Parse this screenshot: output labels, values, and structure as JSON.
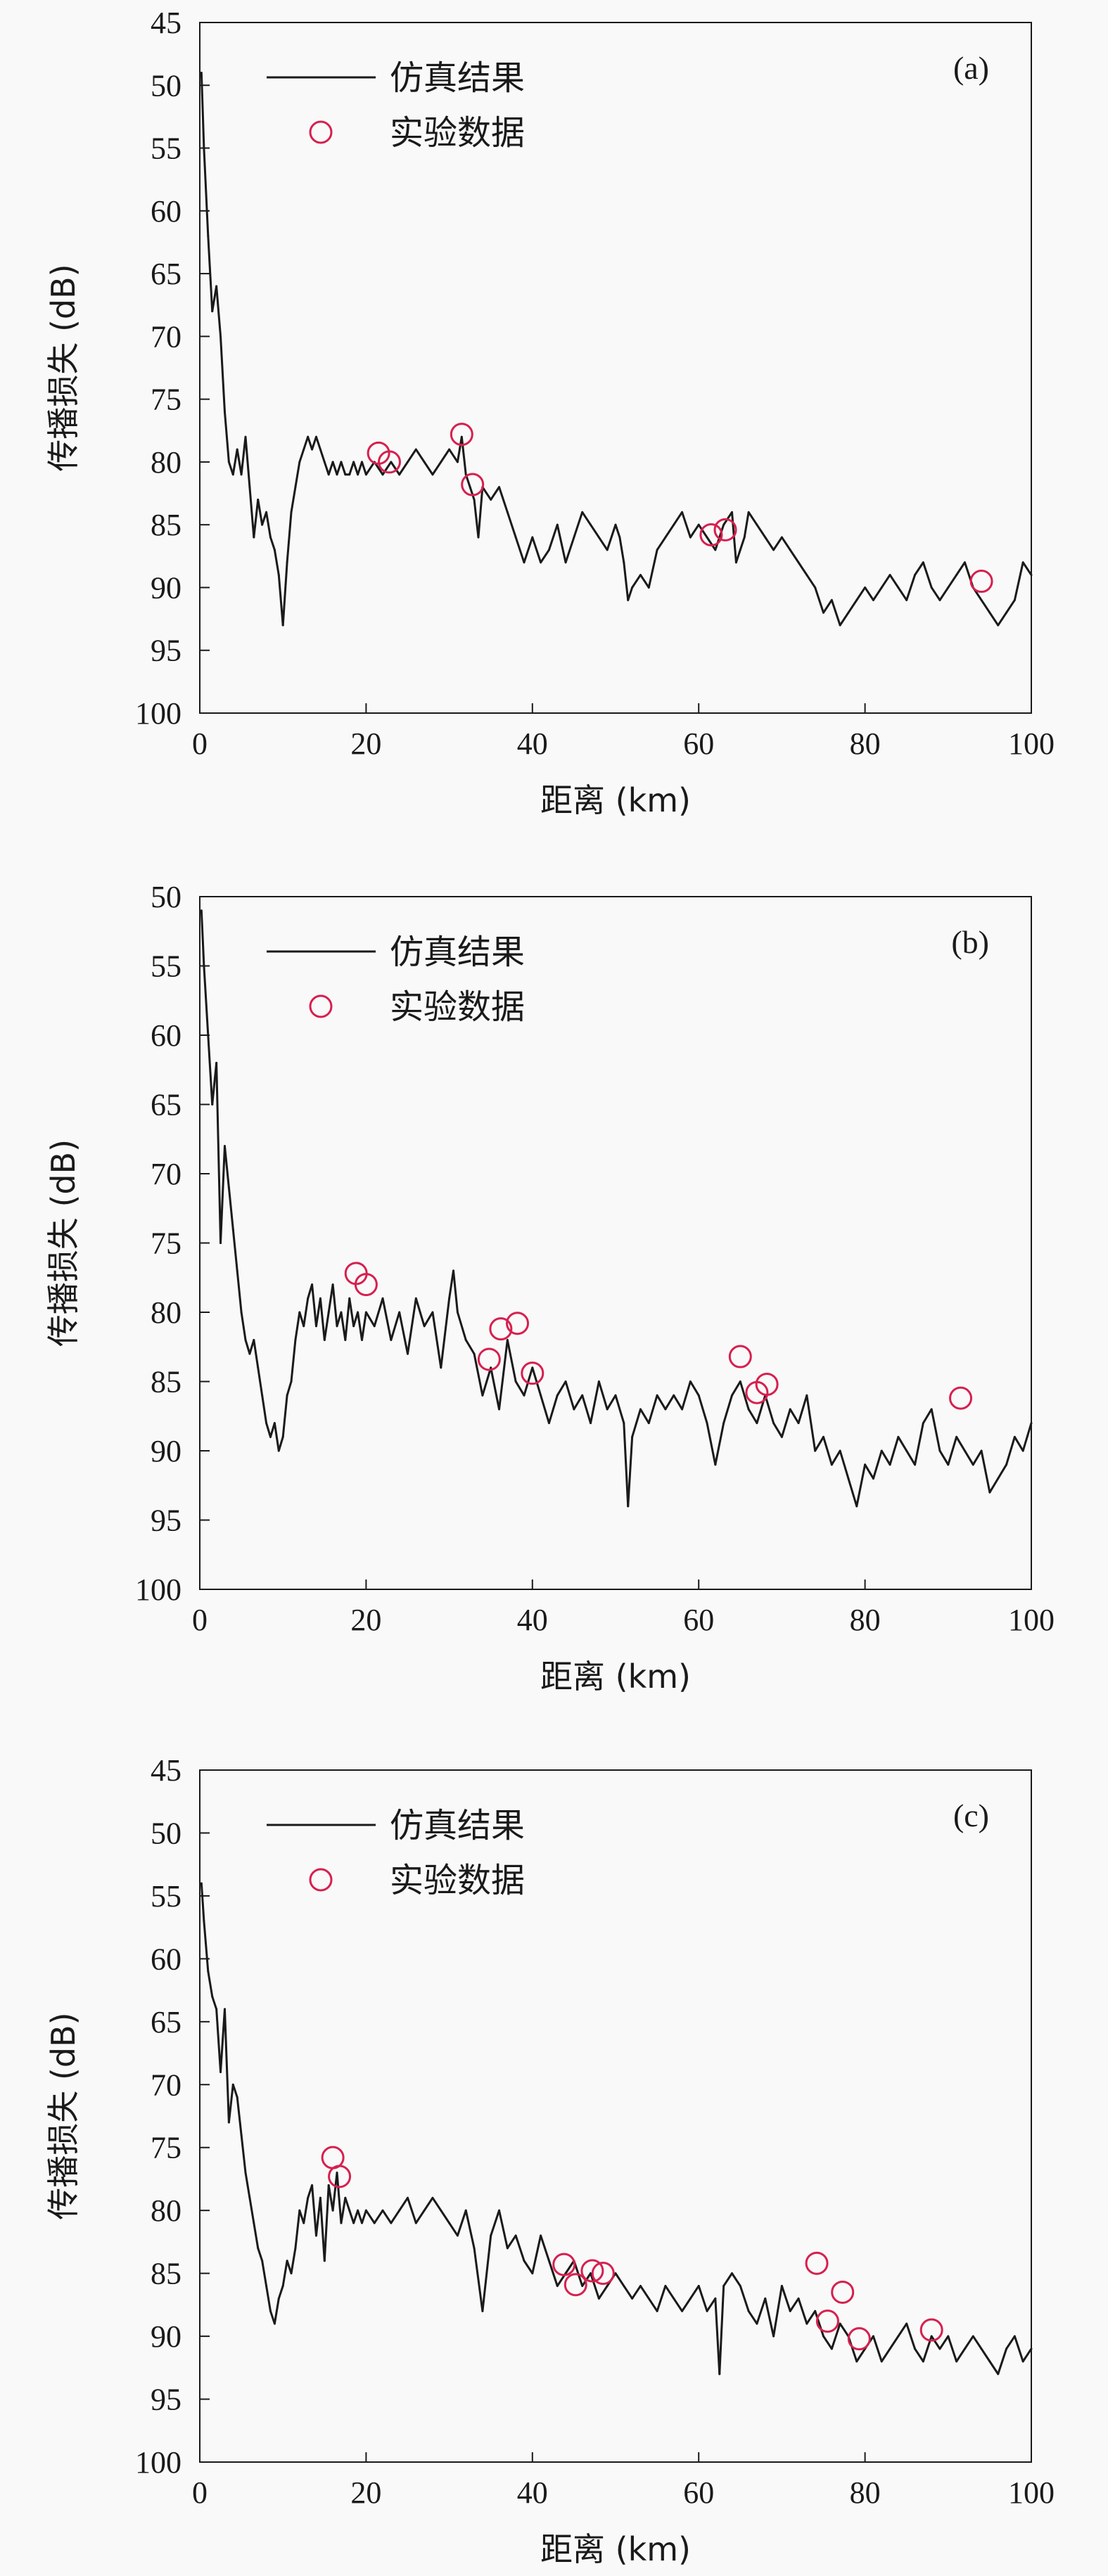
{
  "colors": {
    "line": "#1a1a1a",
    "marker": "#d6204e",
    "frame": "#1a1a1a",
    "background": "#f9f9f9"
  },
  "chart_data": [
    {
      "type": "line",
      "panel_label": "(a)",
      "xlabel": "距离 (km)",
      "ylabel": "传播损失 (dB)",
      "xlim": [
        0,
        100
      ],
      "ylim": [
        100,
        45
      ],
      "y_inverted": true,
      "xticks": [
        "0",
        "20",
        "40",
        "60",
        "80",
        "100"
      ],
      "yticks": [
        "45",
        "50",
        "55",
        "60",
        "65",
        "70",
        "75",
        "80",
        "85",
        "90",
        "95",
        "100"
      ],
      "legend": {
        "position": "top-left",
        "line_label": "仿真结果",
        "marker_label": "实验数据"
      },
      "series": [
        {
          "name": "仿真结果",
          "kind": "line",
          "x": [
            0.2,
            0.5,
            1.0,
            1.5,
            2.0,
            2.5,
            3.0,
            3.5,
            4.0,
            4.5,
            5.0,
            5.5,
            6.0,
            6.5,
            7.0,
            7.5,
            8.0,
            8.5,
            9.0,
            9.5,
            10.0,
            10.5,
            11.0,
            11.5,
            12.0,
            12.5,
            13.0,
            13.5,
            14.0,
            14.5,
            15.0,
            15.5,
            16.0,
            16.5,
            17.0,
            17.5,
            18.0,
            18.5,
            19.0,
            19.5,
            20.0,
            21.0,
            22.0,
            23.0,
            24.0,
            25.0,
            26.0,
            27.0,
            28.0,
            29.0,
            30.0,
            31.0,
            31.5,
            32.0,
            32.5,
            33.0,
            33.5,
            34.0,
            35.0,
            36.0,
            37.0,
            38.0,
            39.0,
            40.0,
            41.0,
            42.0,
            43.0,
            44.0,
            45.0,
            46.0,
            47.0,
            48.0,
            49.0,
            50.0,
            50.5,
            51.0,
            51.5,
            52.0,
            53.0,
            54.0,
            55.0,
            56.0,
            57.0,
            58.0,
            59.0,
            60.0,
            61.0,
            62.0,
            63.0,
            64.0,
            64.5,
            65.0,
            65.5,
            66.0,
            67.0,
            68.0,
            69.0,
            70.0,
            71.0,
            72.0,
            73.0,
            74.0,
            75.0,
            76.0,
            77.0,
            78.0,
            79.0,
            80.0,
            81.0,
            82.0,
            83.0,
            84.0,
            85.0,
            86.0,
            87.0,
            88.0,
            89.0,
            90.0,
            91.0,
            92.0,
            93.0,
            94.0,
            95.0,
            96.0,
            97.0,
            98.0,
            99.0,
            100.0
          ],
          "y": [
            49,
            55,
            62,
            68,
            66,
            70,
            76,
            80,
            81,
            79,
            81,
            78,
            82,
            86,
            83,
            85,
            84,
            86,
            87,
            89,
            93,
            88,
            84,
            82,
            80,
            79,
            78,
            79,
            78,
            79,
            80,
            81,
            80,
            81,
            80,
            81,
            81,
            80,
            81,
            80,
            81,
            80,
            81,
            80,
            81,
            80,
            79,
            80,
            81,
            80,
            79,
            80,
            78,
            81,
            82,
            83,
            86,
            82,
            83,
            82,
            84,
            86,
            88,
            86,
            88,
            87,
            85,
            88,
            86,
            84,
            85,
            86,
            87,
            85,
            86,
            88,
            91,
            90,
            89,
            90,
            87,
            86,
            85,
            84,
            86,
            85,
            86,
            87,
            85,
            84,
            88,
            87,
            86,
            84,
            85,
            86,
            87,
            86,
            87,
            88,
            89,
            90,
            92,
            91,
            93,
            92,
            91,
            90,
            91,
            90,
            89,
            90,
            91,
            89,
            88,
            90,
            91,
            90,
            89,
            88,
            90,
            91,
            92,
            93,
            92,
            91,
            88,
            89
          ],
          "color": "#1a1a1a"
        },
        {
          "name": "实验数据",
          "kind": "scatter",
          "x": [
            21.5,
            22.8,
            31.5,
            32.8,
            61.5,
            63.2,
            94.0
          ],
          "y": [
            79.3,
            80.0,
            77.8,
            81.8,
            85.8,
            85.4,
            89.5
          ],
          "color": "#d6204e"
        }
      ]
    },
    {
      "type": "line",
      "panel_label": "(b)",
      "xlabel": "距离 (km)",
      "ylabel": "传播损失 (dB)",
      "xlim": [
        0,
        100
      ],
      "ylim": [
        100,
        50
      ],
      "y_inverted": true,
      "xticks": [
        "0",
        "20",
        "40",
        "60",
        "80",
        "100"
      ],
      "yticks": [
        "50",
        "55",
        "60",
        "65",
        "70",
        "75",
        "80",
        "85",
        "90",
        "95",
        "100"
      ],
      "legend": {
        "position": "top-left",
        "line_label": "仿真结果",
        "marker_label": "实验数据"
      },
      "series": [
        {
          "name": "仿真结果",
          "kind": "line",
          "x": [
            0.2,
            0.5,
            1.0,
            1.5,
            2.0,
            2.5,
            3.0,
            3.5,
            4.0,
            4.5,
            5.0,
            5.5,
            6.0,
            6.5,
            7.0,
            7.5,
            8.0,
            8.5,
            9.0,
            9.5,
            10.0,
            10.5,
            11.0,
            11.5,
            12.0,
            12.5,
            13.0,
            13.5,
            14.0,
            14.5,
            15.0,
            15.5,
            16.0,
            16.5,
            17.0,
            17.5,
            18.0,
            18.5,
            19.0,
            19.5,
            20.0,
            21.0,
            22.0,
            23.0,
            24.0,
            25.0,
            26.0,
            27.0,
            28.0,
            29.0,
            30.0,
            30.5,
            31.0,
            32.0,
            33.0,
            34.0,
            35.0,
            36.0,
            37.0,
            38.0,
            39.0,
            40.0,
            41.0,
            42.0,
            43.0,
            44.0,
            45.0,
            46.0,
            47.0,
            48.0,
            49.0,
            50.0,
            51.0,
            51.5,
            52.0,
            53.0,
            54.0,
            55.0,
            56.0,
            57.0,
            58.0,
            59.0,
            60.0,
            61.0,
            62.0,
            63.0,
            64.0,
            65.0,
            66.0,
            67.0,
            68.0,
            69.0,
            70.0,
            71.0,
            72.0,
            73.0,
            74.0,
            75.0,
            76.0,
            77.0,
            78.0,
            79.0,
            80.0,
            81.0,
            82.0,
            83.0,
            84.0,
            85.0,
            86.0,
            87.0,
            88.0,
            89.0,
            90.0,
            91.0,
            92.0,
            93.0,
            94.0,
            95.0,
            96.0,
            97.0,
            98.0,
            99.0,
            100.0
          ],
          "y": [
            51,
            55,
            60,
            65,
            62,
            75,
            68,
            71,
            74,
            77,
            80,
            82,
            83,
            82,
            84,
            86,
            88,
            89,
            88,
            90,
            89,
            86,
            85,
            82,
            80,
            81,
            79,
            78,
            81,
            79,
            82,
            80,
            78,
            81,
            80,
            82,
            79,
            81,
            80,
            82,
            80,
            81,
            79,
            82,
            80,
            83,
            79,
            81,
            80,
            84,
            79,
            77,
            80,
            82,
            83,
            86,
            84,
            87,
            82,
            85,
            86,
            84,
            86,
            88,
            86,
            85,
            87,
            86,
            88,
            85,
            87,
            86,
            88,
            94,
            89,
            87,
            88,
            86,
            87,
            86,
            87,
            85,
            86,
            88,
            91,
            88,
            86,
            85,
            87,
            88,
            86,
            88,
            89,
            87,
            88,
            86,
            90,
            89,
            91,
            90,
            92,
            94,
            91,
            92,
            90,
            91,
            89,
            90,
            91,
            88,
            87,
            90,
            91,
            89,
            90,
            91,
            90,
            93,
            92,
            91,
            89,
            90,
            88
          ],
          "color": "#1a1a1a"
        },
        {
          "name": "实验数据",
          "kind": "scatter",
          "x": [
            18.8,
            20.0,
            34.8,
            36.2,
            38.2,
            40.0,
            65.0,
            67.0,
            68.2,
            91.5
          ],
          "y": [
            77.2,
            78.0,
            83.4,
            81.2,
            80.8,
            84.4,
            83.2,
            85.8,
            85.2,
            86.2
          ],
          "color": "#d6204e"
        }
      ]
    },
    {
      "type": "line",
      "panel_label": "(c)",
      "xlabel": "距离 (km)",
      "ylabel": "传播损失 (dB)",
      "xlim": [
        0,
        100
      ],
      "ylim": [
        100,
        45
      ],
      "y_inverted": true,
      "xticks": [
        "0",
        "20",
        "40",
        "60",
        "80",
        "100"
      ],
      "yticks": [
        "45",
        "50",
        "55",
        "60",
        "65",
        "70",
        "75",
        "80",
        "85",
        "90",
        "95",
        "100"
      ],
      "legend": {
        "position": "top-left",
        "line_label": "仿真结果",
        "marker_label": "实验数据"
      },
      "series": [
        {
          "name": "仿真结果",
          "kind": "line",
          "x": [
            0.2,
            0.5,
            1.0,
            1.5,
            2.0,
            2.5,
            3.0,
            3.5,
            4.0,
            4.5,
            5.0,
            5.5,
            6.0,
            6.5,
            7.0,
            7.5,
            8.0,
            8.5,
            9.0,
            9.5,
            10.0,
            10.5,
            11.0,
            11.5,
            12.0,
            12.5,
            13.0,
            13.5,
            14.0,
            14.5,
            15.0,
            15.5,
            16.0,
            16.5,
            17.0,
            17.5,
            18.0,
            18.5,
            19.0,
            19.5,
            20.0,
            21.0,
            22.0,
            23.0,
            24.0,
            25.0,
            26.0,
            27.0,
            28.0,
            29.0,
            30.0,
            31.0,
            32.0,
            33.0,
            34.0,
            35.0,
            36.0,
            37.0,
            38.0,
            39.0,
            40.0,
            41.0,
            42.0,
            43.0,
            44.0,
            45.0,
            46.0,
            47.0,
            48.0,
            49.0,
            50.0,
            51.0,
            52.0,
            53.0,
            54.0,
            55.0,
            56.0,
            57.0,
            58.0,
            59.0,
            60.0,
            61.0,
            62.0,
            62.5,
            63.0,
            64.0,
            65.0,
            66.0,
            67.0,
            68.0,
            69.0,
            70.0,
            71.0,
            72.0,
            73.0,
            74.0,
            75.0,
            76.0,
            77.0,
            78.0,
            79.0,
            80.0,
            81.0,
            82.0,
            83.0,
            84.0,
            85.0,
            86.0,
            87.0,
            88.0,
            89.0,
            90.0,
            91.0,
            92.0,
            93.0,
            94.0,
            95.0,
            96.0,
            97.0,
            98.0,
            99.0,
            100.0
          ],
          "y": [
            54,
            57,
            61,
            63,
            64,
            69,
            64,
            73,
            70,
            71,
            74,
            77,
            79,
            81,
            83,
            84,
            86,
            88,
            89,
            87,
            86,
            84,
            85,
            83,
            80,
            81,
            79,
            78,
            82,
            79,
            84,
            78,
            80,
            77,
            81,
            79,
            80,
            81,
            80,
            81,
            80,
            81,
            80,
            81,
            80,
            79,
            81,
            80,
            79,
            80,
            81,
            82,
            80,
            83,
            88,
            82,
            80,
            83,
            82,
            84,
            85,
            82,
            84,
            86,
            85,
            84,
            86,
            85,
            87,
            86,
            85,
            86,
            87,
            86,
            87,
            88,
            86,
            87,
            88,
            87,
            86,
            88,
            87,
            93,
            86,
            85,
            86,
            88,
            89,
            87,
            90,
            86,
            88,
            87,
            89,
            88,
            90,
            91,
            89,
            90,
            92,
            91,
            90,
            92,
            91,
            90,
            89,
            91,
            92,
            90,
            91,
            90,
            92,
            91,
            90,
            91,
            92,
            93,
            91,
            90,
            92,
            91
          ],
          "color": "#1a1a1a"
        },
        {
          "name": "实验数据",
          "kind": "scatter",
          "x": [
            16.0,
            16.8,
            43.8,
            45.2,
            47.2,
            48.5,
            74.2,
            75.5,
            77.3,
            79.3,
            88.0
          ],
          "y": [
            75.8,
            77.3,
            84.3,
            85.9,
            84.8,
            85.0,
            84.2,
            88.8,
            86.5,
            90.2,
            89.5
          ],
          "color": "#d6204e"
        }
      ]
    }
  ]
}
